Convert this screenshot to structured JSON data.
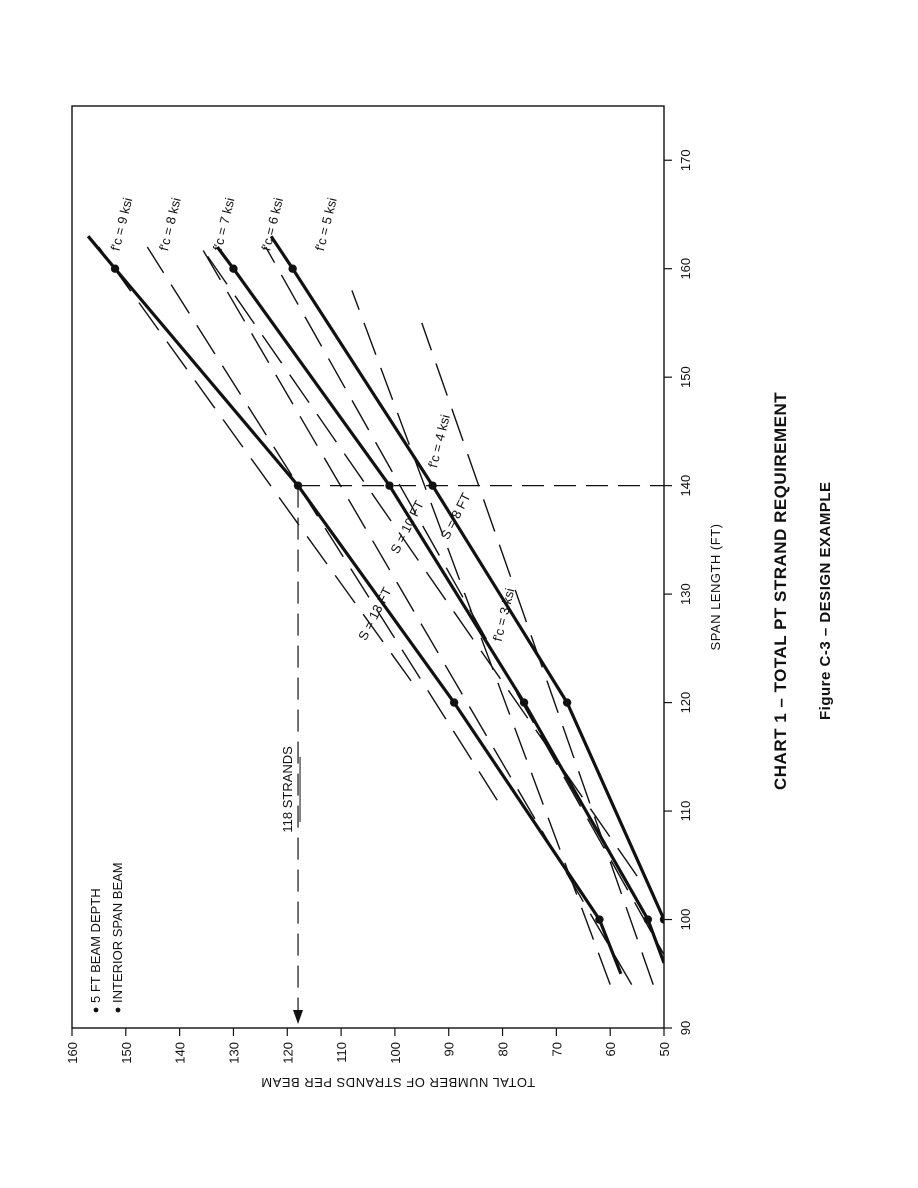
{
  "chart_data": {
    "type": "line",
    "title": "CHART 1 – TOTAL PT STRAND REQUIREMENT",
    "subtitle": "Figure C-3 – DESIGN EXAMPLE",
    "xlabel": "SPAN LENGTH (FT)",
    "ylabel": "TOTAL NUMBER OF STRANDS PER BEAM",
    "xlim": [
      90,
      175
    ],
    "ylim": [
      50,
      160
    ],
    "xticks": [
      "90",
      "100",
      "110",
      "120",
      "130",
      "140",
      "150",
      "160",
      "170"
    ],
    "yticks": [
      "50",
      "60",
      "70",
      "80",
      "90",
      "100",
      "110",
      "120",
      "130",
      "140",
      "150",
      "160"
    ],
    "grid": false,
    "legend": {
      "position": "top-left",
      "entries": [
        "5 FT BEAM DEPTH",
        "INTERIOR SPAN BEAM"
      ]
    },
    "series": [
      {
        "name": "S = 13 FT",
        "style": "solid",
        "x": [
          95,
          100,
          120,
          140,
          160,
          163
        ],
        "y": [
          58,
          62,
          89,
          118,
          152,
          157
        ]
      },
      {
        "name": "S = 10 FT",
        "style": "solid",
        "x": [
          96,
          100,
          120,
          140,
          160,
          162
        ],
        "y": [
          50,
          53,
          76,
          101,
          130,
          133
        ]
      },
      {
        "name": "S = 8 FT",
        "style": "solid",
        "x": [
          96,
          100,
          120,
          140,
          160,
          163
        ],
        "y": [
          45,
          50,
          68,
          93,
          119,
          123
        ]
      },
      {
        "name": "f'c = 3 ksi",
        "style": "dashed",
        "x": [
          94,
          155
        ],
        "y": [
          52,
          95
        ]
      },
      {
        "name": "f'c = 4 ksi",
        "style": "dashed",
        "x": [
          94,
          158
        ],
        "y": [
          60,
          108
        ]
      },
      {
        "name": "f'c = 5 ksi",
        "style": "dashed",
        "x": [
          95,
          162
        ],
        "y": [
          48,
          124
        ]
      },
      {
        "name": "f'c = 6 ksi",
        "style": "dashed",
        "x": [
          94,
          162
        ],
        "y": [
          56,
          136
        ]
      },
      {
        "name": "f'c = 7 ksi",
        "style": "dashed",
        "x": [
          104,
          162
        ],
        "y": [
          55,
          136
        ]
      },
      {
        "name": "f'c = 8 ksi",
        "style": "dashed",
        "x": [
          111,
          162
        ],
        "y": [
          81,
          146
        ]
      },
      {
        "name": "f'c = 9 ksi",
        "style": "dashed",
        "x": [
          122,
          162
        ],
        "y": [
          97,
          155
        ]
      }
    ],
    "annotations": {
      "strand_marker": {
        "label": "118 STRANDS",
        "x": 140,
        "y": 118
      },
      "series_labels": [
        "S = 13 FT",
        "S = 10 FT",
        "S = 8 FT"
      ],
      "ksi_labels": [
        "f'c = 9 ksi",
        "f'c = 8 ksi",
        "f'c = 7 ksi",
        "f'c = 6 ksi",
        "f'c = 5 ksi",
        "f'c = 4 ksi",
        "f'c = 3 ksi"
      ]
    }
  },
  "colors": {
    "ink": "#111111",
    "paper": "#ffffff"
  }
}
